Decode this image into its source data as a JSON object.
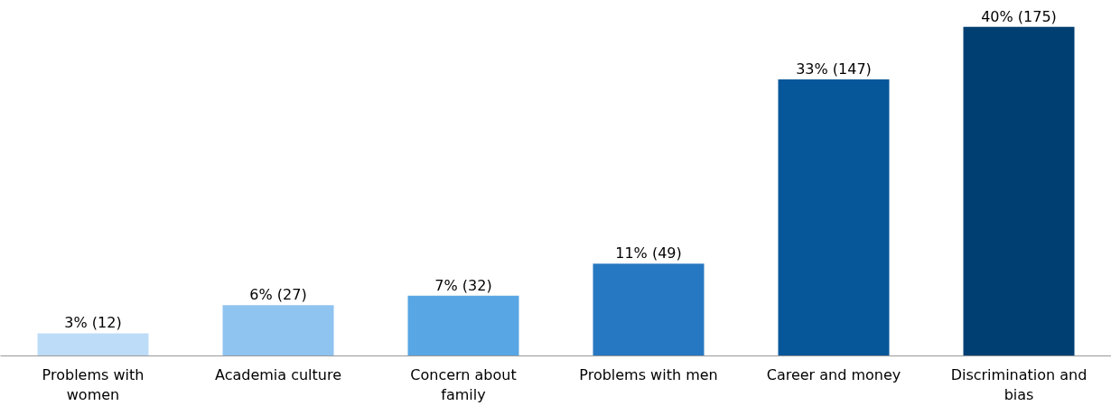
{
  "chart_data": {
    "type": "bar",
    "categories": [
      "Problems with women",
      "Academia culture",
      "Concern about family",
      "Problems with men",
      "Career and money",
      "Discrimination and bias"
    ],
    "values": [
      12,
      27,
      32,
      49,
      147,
      175
    ],
    "colors": [
      "#bddcf7",
      "#8fc3f0",
      "#58a6e4",
      "#2778c2",
      "#06569a",
      "#003f72"
    ],
    "value_labels": [
      "3% (12)",
      "6% (27)",
      "7% (32)",
      "11% (49)",
      "33% (147)",
      "40% (175)"
    ]
  }
}
